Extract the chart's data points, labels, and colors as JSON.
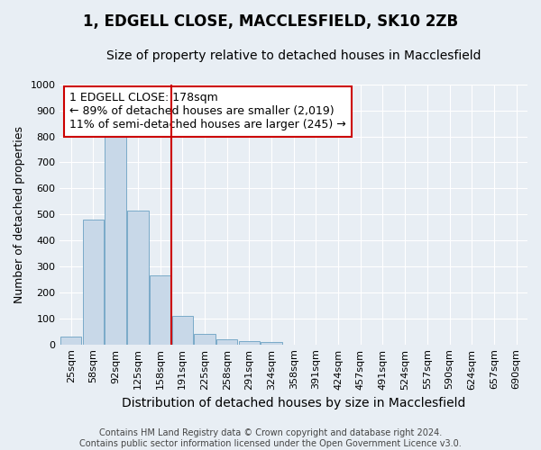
{
  "title1": "1, EDGELL CLOSE, MACCLESFIELD, SK10 2ZB",
  "title2": "Size of property relative to detached houses in Macclesfield",
  "xlabel": "Distribution of detached houses by size in Macclesfield",
  "ylabel": "Number of detached properties",
  "footer1": "Contains HM Land Registry data © Crown copyright and database right 2024.",
  "footer2": "Contains public sector information licensed under the Open Government Licence v3.0.",
  "categories": [
    "25sqm",
    "58sqm",
    "92sqm",
    "125sqm",
    "158sqm",
    "191sqm",
    "225sqm",
    "258sqm",
    "291sqm",
    "324sqm",
    "358sqm",
    "391sqm",
    "424sqm",
    "457sqm",
    "491sqm",
    "524sqm",
    "557sqm",
    "590sqm",
    "624sqm",
    "657sqm",
    "690sqm"
  ],
  "values": [
    30,
    480,
    820,
    515,
    265,
    110,
    40,
    20,
    13,
    8,
    0,
    0,
    0,
    0,
    0,
    0,
    0,
    0,
    0,
    0,
    0
  ],
  "bar_color": "#c8d8e8",
  "bar_edge_color": "#7aaac8",
  "vline_color": "#cc0000",
  "annotation_line1": "1 EDGELL CLOSE: 178sqm",
  "annotation_line2": "← 89% of detached houses are smaller (2,019)",
  "annotation_line3": "11% of semi-detached houses are larger (245) →",
  "annotation_box_color": "#ffffff",
  "annotation_box_edge": "#cc0000",
  "ylim": [
    0,
    1000
  ],
  "yticks": [
    0,
    100,
    200,
    300,
    400,
    500,
    600,
    700,
    800,
    900,
    1000
  ],
  "bg_color": "#e8eef4",
  "axes_bg_color": "#e8eef4",
  "grid_color": "#ffffff",
  "title1_fontsize": 12,
  "title2_fontsize": 10,
  "xlabel_fontsize": 10,
  "ylabel_fontsize": 9,
  "tick_fontsize": 8,
  "footer_fontsize": 7,
  "annot_fontsize": 9
}
